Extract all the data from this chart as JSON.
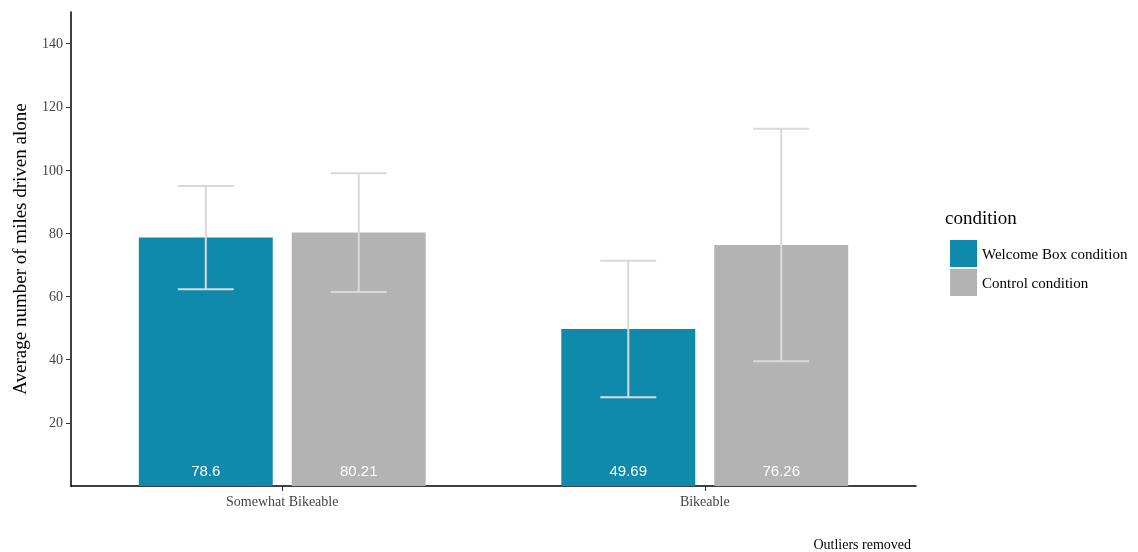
{
  "chart_data": {
    "type": "bar",
    "ylabel": "Average number of miles driven alone",
    "legend_title": "condition",
    "annotations": [
      "Outliers removed"
    ],
    "categories": [
      "Somewhat Bikeable",
      "Bikeable"
    ],
    "series": [
      {
        "name": "Welcome Box condition",
        "color": "#108aab",
        "values": [
          78.6,
          49.69
        ],
        "errors": [
          16.3,
          21.6
        ]
      },
      {
        "name": "Control condition",
        "color": "#b3b3b3",
        "values": [
          80.21,
          76.26
        ],
        "errors": [
          18.8,
          36.8
        ]
      }
    ],
    "ylim": [
      0,
      150
    ],
    "yticks": [
      20,
      40,
      60,
      80,
      100,
      120,
      140
    ],
    "data_labels": true,
    "grid": false,
    "legend": "right"
  }
}
